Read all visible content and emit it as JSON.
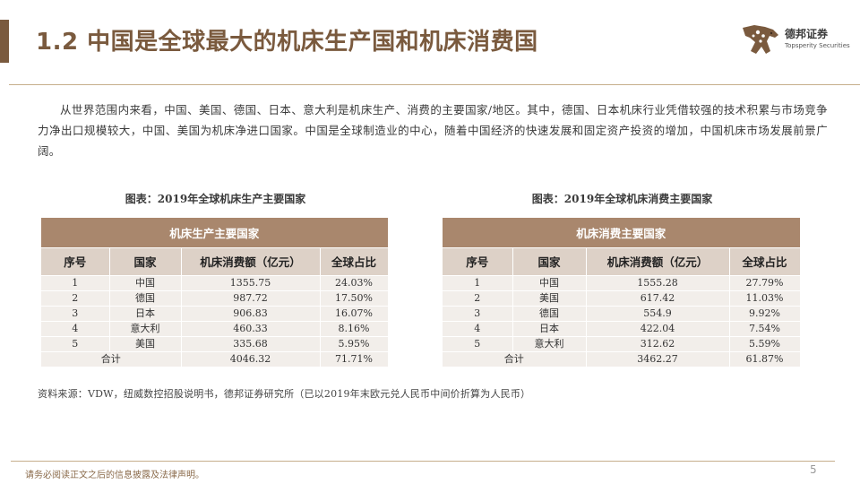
{
  "header": {
    "title": "1.2 中国是全球最大的机床生产国和机床消费国",
    "accent_color": "#7a5a3e"
  },
  "logo": {
    "name_cn": "德邦证券",
    "name_en": "Topsperity Securities",
    "icon": "leopard-logo-icon"
  },
  "intro": {
    "paragraph": "从世界范围内来看，中国、美国、德国、日本、意大利是机床生产、消费的主要国家/地区。其中，德国、日本机床行业凭借较强的技术积累与市场竞争力净出口规模较大，中国、美国为机床净进口国家。中国是全球制造业的中心，随着中国经济的快速发展和固定资产投资的增加，中国机床市场发展前景广阔。"
  },
  "production": {
    "caption": "图表：2019年全球机床生产主要国家",
    "banner": "机床生产主要国家",
    "columns": [
      "序号",
      "国家",
      "机床消费额（亿元）",
      "全球占比"
    ],
    "rows": [
      {
        "no": "1",
        "country": "中国",
        "value": "1355.75",
        "share": "24.03%"
      },
      {
        "no": "2",
        "country": "德国",
        "value": "987.72",
        "share": "17.50%"
      },
      {
        "no": "3",
        "country": "日本",
        "value": "906.83",
        "share": "16.07%"
      },
      {
        "no": "4",
        "country": "意大利",
        "value": "460.33",
        "share": "8.16%"
      },
      {
        "no": "5",
        "country": "美国",
        "value": "335.68",
        "share": "5.95%"
      }
    ],
    "total": {
      "label": "合计",
      "value": "4046.32",
      "share": "71.71%"
    }
  },
  "consumption": {
    "caption": "图表：2019年全球机床消费主要国家",
    "banner": "机床消费主要国家",
    "columns": [
      "序号",
      "国家",
      "机床消费额（亿元）",
      "全球占比"
    ],
    "rows": [
      {
        "no": "1",
        "country": "中国",
        "value": "1555.28",
        "share": "27.79%"
      },
      {
        "no": "2",
        "country": "美国",
        "value": "617.42",
        "share": "11.03%"
      },
      {
        "no": "3",
        "country": "德国",
        "value": "554.9",
        "share": "9.92%"
      },
      {
        "no": "4",
        "country": "日本",
        "value": "422.04",
        "share": "7.54%"
      },
      {
        "no": "5",
        "country": "意大利",
        "value": "312.62",
        "share": "5.59%"
      }
    ],
    "total": {
      "label": "合计",
      "value": "3462.27",
      "share": "61.87%"
    }
  },
  "source": {
    "text": "资料来源：VDW，纽威数控招股说明书，德邦证券研究所（已以2019年末欧元兑人民币中间价折算为人民币）"
  },
  "footer": {
    "note": "请务必阅读正文之后的信息披露及法律声明。",
    "page": "5"
  }
}
